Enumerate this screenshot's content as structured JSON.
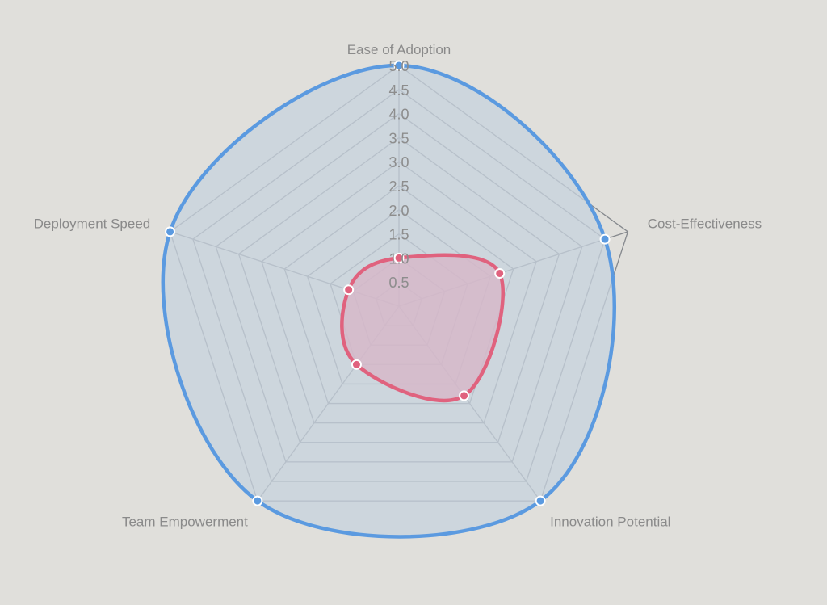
{
  "chart_data": {
    "type": "radar",
    "axes": [
      "Ease of Adoption",
      "Cost-Effectiveness",
      "Innovation Potential",
      "Team Empowerment",
      "Deployment Speed"
    ],
    "r_ticks": [
      "0.5",
      "1.0",
      "1.5",
      "2.0",
      "2.5",
      "3.0",
      "3.5",
      "4.0",
      "4.5",
      "5.0"
    ],
    "r_range": [
      0,
      5
    ],
    "series": [
      {
        "color": "#5b9ae0",
        "fill": "#c7d3de",
        "values": [
          5,
          4.5,
          5,
          5,
          5
        ]
      },
      {
        "color": "#e0627e",
        "fill": "#d7b6c8",
        "values": [
          1,
          2.2,
          2.3,
          1.5,
          1.1
        ]
      }
    ],
    "grid": true
  }
}
